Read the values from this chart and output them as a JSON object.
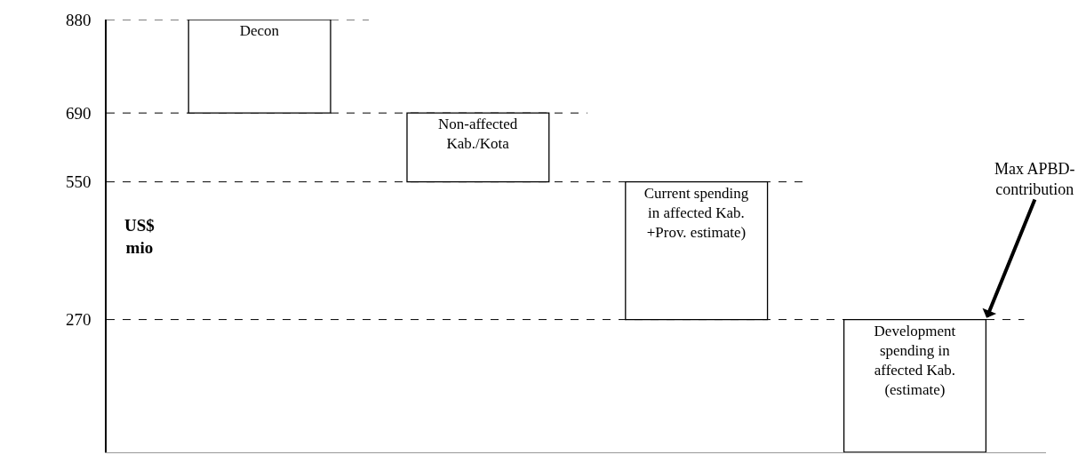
{
  "chart_data": {
    "type": "bar",
    "ylabel": "US$ mio",
    "categories": [
      "Decon",
      "Non-affected Kab./Kota",
      "Current spending in affected Kab. +Prov. estimate)",
      "Development spending in affected Kab. (estimate)"
    ],
    "values": [
      190,
      140,
      280,
      270
    ],
    "base": [
      690,
      550,
      270,
      0
    ],
    "color": "#ffffff",
    "ylim": [
      0,
      880
    ],
    "yticks": [
      270,
      550,
      690,
      880
    ],
    "tick_labels": "y",
    "grid": false,
    "legend": false,
    "ref_lines": [
      {
        "axis": "y",
        "value": 880,
        "line_style": "dashed",
        "color": "#000000"
      },
      {
        "axis": "y",
        "value": 690,
        "line_style": "dashed",
        "color": "#000000"
      },
      {
        "axis": "y",
        "value": 550,
        "line_style": "dashed",
        "color": "#000000"
      },
      {
        "axis": "y",
        "value": 270,
        "line_style": "dashed",
        "color": "#000000"
      }
    ],
    "annotations": [
      "Max APBD-\ncontribution"
    ]
  }
}
